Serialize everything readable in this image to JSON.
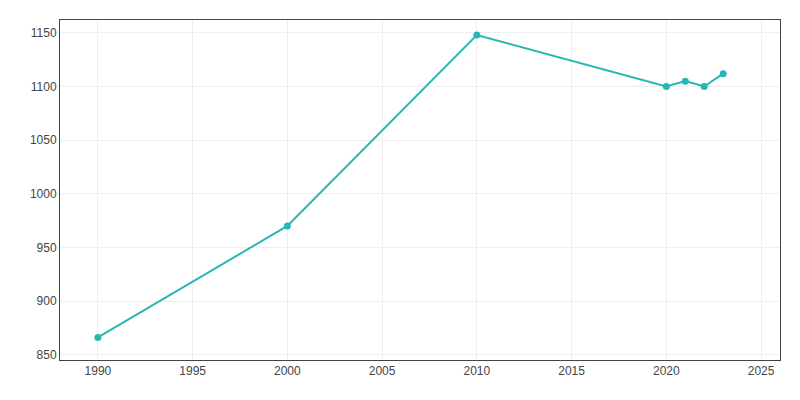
{
  "chart_data": {
    "type": "line",
    "x": [
      1990,
      2000,
      2010,
      2020,
      2021,
      2022,
      2023
    ],
    "values": [
      866,
      970,
      1148,
      1100,
      1105,
      1100,
      1112
    ],
    "color": "#2ab5b5",
    "marker": "circle",
    "xlim": [
      1988,
      2026
    ],
    "xticks": [
      1990,
      1995,
      2000,
      2005,
      2010,
      2015,
      2020,
      2025
    ],
    "ylim": [
      845,
      1162
    ],
    "yticks": [
      850,
      900,
      950,
      1000,
      1050,
      1100,
      1150
    ],
    "grid": true
  }
}
